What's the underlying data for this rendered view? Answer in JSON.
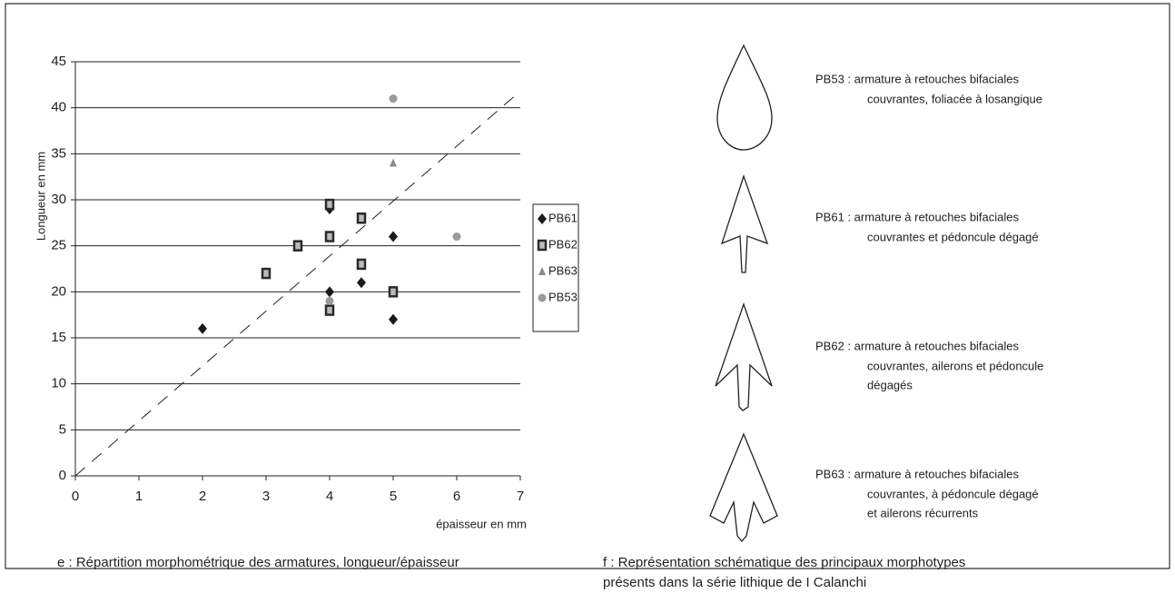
{
  "chart_data": {
    "type": "scatter",
    "ylabel": "Longueur en mm",
    "xlabel": "épaisseur en mm",
    "xlim": [
      0,
      7
    ],
    "xticks": [
      0,
      1,
      2,
      3,
      4,
      5,
      6,
      7
    ],
    "ylim": [
      0,
      45
    ],
    "yticks": [
      0,
      5,
      10,
      15,
      20,
      25,
      30,
      35,
      40,
      45
    ],
    "grid": true,
    "legend": "right",
    "series": [
      {
        "name": "PB61",
        "color": "#1a1a1a",
        "marker": "diamond",
        "x": [
          2,
          4,
          4,
          4.5,
          5,
          5
        ],
        "values": [
          16,
          29,
          20,
          21,
          26,
          17
        ]
      },
      {
        "name": "PB62",
        "color": "#2a2a2a",
        "marker": "square",
        "x": [
          3,
          3.5,
          4,
          4,
          4,
          4.5,
          4.5,
          5
        ],
        "values": [
          22,
          25,
          29.5,
          26,
          18,
          28,
          23,
          20
        ]
      },
      {
        "name": "PB63",
        "color": "#8a8a8a",
        "marker": "triangle",
        "x": [
          5
        ],
        "values": [
          34
        ]
      },
      {
        "name": "PB53",
        "color": "#9a9a9a",
        "marker": "circle",
        "x": [
          5,
          6,
          4
        ],
        "values": [
          41,
          26,
          19
        ]
      }
    ],
    "trendline": {
      "x": [
        0,
        7
      ],
      "values": [
        0,
        41.8
      ]
    }
  },
  "captions": {
    "left": "e : Répartition morphométrique des armatures, longueur/épaisseur",
    "right": [
      "f : Représentation schématique des principaux morphotypes",
      "présents dans la série lithique de I Calanchi"
    ]
  },
  "diagram": {
    "items": [
      {
        "title": "PB53 : armature à retouches bifaciales",
        "lines": [
          "couvrantes, foliacée à losangique"
        ]
      },
      {
        "title": "PB61 : armature à retouches bifaciales",
        "lines": [
          "couvrantes et pédoncule dégagé"
        ]
      },
      {
        "title": "PB62 : armature à retouches bifaciales",
        "lines": [
          "couvrantes, ailerons et pédoncule",
          "dégagés"
        ]
      },
      {
        "title": "PB63 : armature à retouches bifaciales",
        "lines": [
          "couvrantes, à  pédoncule dégagé",
          "et ailerons récurrents"
        ]
      }
    ]
  }
}
